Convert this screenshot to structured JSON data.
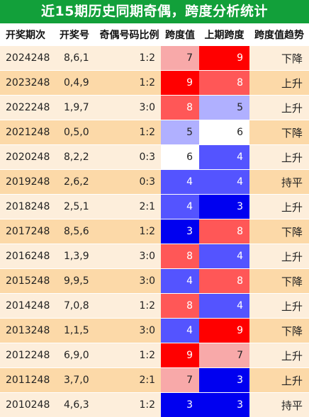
{
  "title": "近15期历史同期奇偶，跨度分析统计",
  "headers": [
    "开奖期次",
    "开奖号",
    "奇偶号码比例",
    "跨度值",
    "上期跨度",
    "跨度值趋势"
  ],
  "rows": [
    {
      "period": "2024248",
      "nums": "8,6,1",
      "ratio": "1:2",
      "span": "7",
      "span_color": "#f8a9a9",
      "prev": "9",
      "prev_color": "#ff0000",
      "trend": "下降"
    },
    {
      "period": "2023248",
      "nums": "0,4,9",
      "ratio": "1:2",
      "span": "9",
      "span_color": "#ff0000",
      "prev": "8",
      "prev_color": "#ff5757",
      "trend": "上升"
    },
    {
      "period": "2022248",
      "nums": "1,9,7",
      "ratio": "3:0",
      "span": "8",
      "span_color": "#ff5757",
      "prev": "5",
      "prev_color": "#b0b0ff",
      "trend": "上升"
    },
    {
      "period": "2021248",
      "nums": "0,5,0",
      "ratio": "1:2",
      "span": "5",
      "span_color": "#b0b0ff",
      "prev": "6",
      "prev_color": "#ffffff",
      "trend": "下降"
    },
    {
      "period": "2020248",
      "nums": "8,2,2",
      "ratio": "0:3",
      "span": "6",
      "span_color": "#ffffff",
      "prev": "4",
      "prev_color": "#5454ff",
      "trend": "上升"
    },
    {
      "period": "2019248",
      "nums": "2,6,2",
      "ratio": "0:3",
      "span": "4",
      "span_color": "#5454ff",
      "prev": "4",
      "prev_color": "#5454ff",
      "trend": "持平"
    },
    {
      "period": "2018248",
      "nums": "2,5,1",
      "ratio": "2:1",
      "span": "4",
      "span_color": "#5454ff",
      "prev": "3",
      "prev_color": "#0000f0",
      "trend": "上升"
    },
    {
      "period": "2017248",
      "nums": "8,5,6",
      "ratio": "1:2",
      "span": "3",
      "span_color": "#0000f0",
      "prev": "8",
      "prev_color": "#ff5757",
      "trend": "下降"
    },
    {
      "period": "2016248",
      "nums": "1,3,9",
      "ratio": "3:0",
      "span": "8",
      "span_color": "#ff5757",
      "prev": "4",
      "prev_color": "#5454ff",
      "trend": "上升"
    },
    {
      "period": "2015248",
      "nums": "9,9,5",
      "ratio": "3:0",
      "span": "4",
      "span_color": "#5454ff",
      "prev": "8",
      "prev_color": "#ff5757",
      "trend": "下降"
    },
    {
      "period": "2014248",
      "nums": "7,0,8",
      "ratio": "1:2",
      "span": "8",
      "span_color": "#ff5757",
      "prev": "4",
      "prev_color": "#5454ff",
      "trend": "上升"
    },
    {
      "period": "2013248",
      "nums": "1,1,5",
      "ratio": "3:0",
      "span": "4",
      "span_color": "#5454ff",
      "prev": "9",
      "prev_color": "#ff0000",
      "trend": "下降"
    },
    {
      "period": "2012248",
      "nums": "6,9,0",
      "ratio": "1:2",
      "span": "9",
      "span_color": "#ff0000",
      "prev": "7",
      "prev_color": "#f8a9a9",
      "trend": "上升"
    },
    {
      "period": "2011248",
      "nums": "3,7,0",
      "ratio": "2:1",
      "span": "7",
      "span_color": "#f8a9a9",
      "prev": "3",
      "prev_color": "#0000f0",
      "trend": "上升"
    },
    {
      "period": "2010248",
      "nums": "4,6,3",
      "ratio": "1:2",
      "span": "3",
      "span_color": "#0000f0",
      "prev": "3",
      "prev_color": "#0000f0",
      "trend": "持平"
    }
  ]
}
